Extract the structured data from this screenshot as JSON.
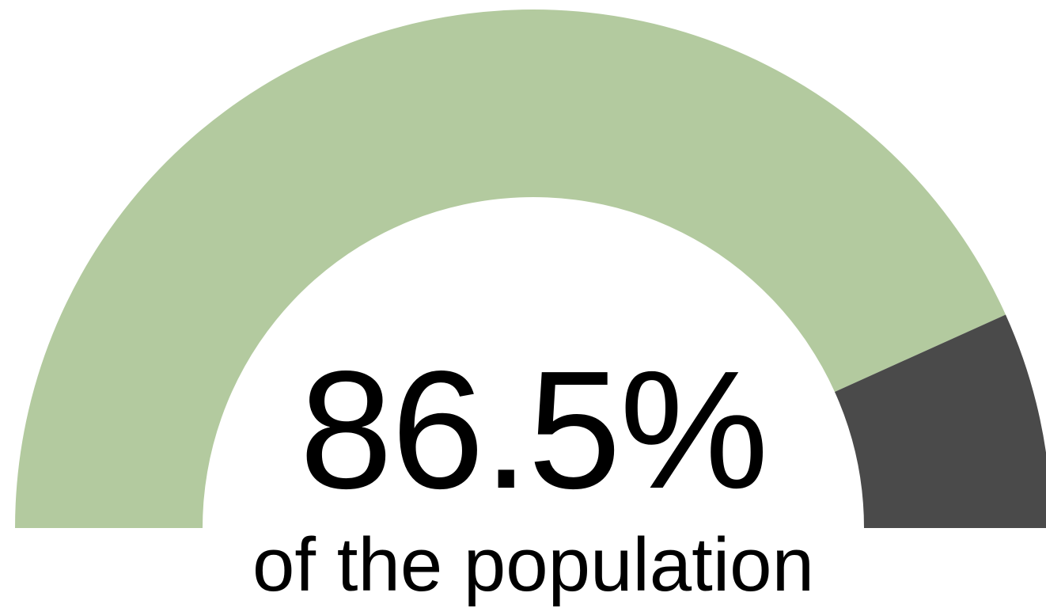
{
  "chart_data": {
    "type": "pie",
    "variant": "half-donut gauge",
    "value_percent": 86.5,
    "value_label": "86.5%",
    "caption": "of the population",
    "segments": [
      {
        "share": 86.5,
        "color": "#b3ca9f"
      },
      {
        "share": 13.5,
        "color": "#4a4a4a"
      }
    ],
    "legend": "none",
    "grid": false
  }
}
